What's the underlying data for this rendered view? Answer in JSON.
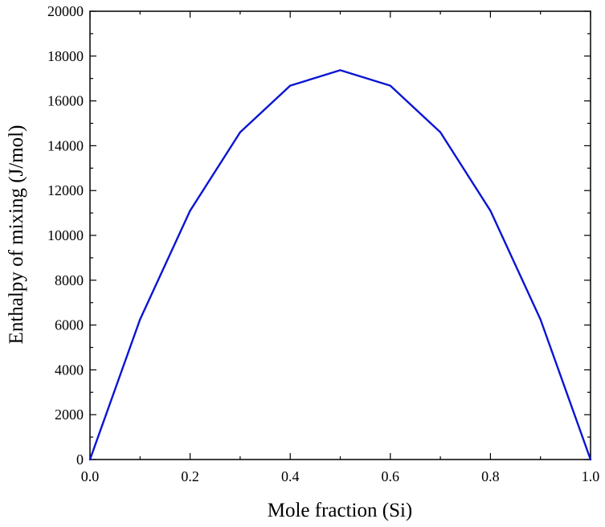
{
  "chart_data": {
    "type": "line",
    "title": "",
    "xlabel": "Mole fraction (Si)",
    "ylabel": "Enthalpy of mixing (J/mol)",
    "xlim": [
      0.0,
      1.0
    ],
    "ylim": [
      0,
      20000
    ],
    "x_ticks": [
      0.0,
      0.2,
      0.4,
      0.6,
      0.8,
      1.0
    ],
    "x_tick_labels": [
      "0.0",
      "0.2",
      "0.4",
      "0.6",
      "0.8",
      "1.0"
    ],
    "y_ticks": [
      0,
      2000,
      4000,
      6000,
      8000,
      10000,
      12000,
      14000,
      16000,
      18000,
      20000
    ],
    "y_tick_labels": [
      "0",
      "2000",
      "4000",
      "6000",
      "8000",
      "10000",
      "12000",
      "14000",
      "16000",
      "18000",
      "20000"
    ],
    "grid": false,
    "legend": "none",
    "series": [
      {
        "color": "#0a14d2",
        "x": [
          0.0,
          0.1,
          0.2,
          0.3,
          0.4,
          0.5,
          0.6,
          0.7,
          0.8,
          0.9,
          1.0
        ],
        "y": [
          0,
          6250,
          11100,
          14600,
          16680,
          17370,
          16680,
          14600,
          11100,
          6250,
          0
        ]
      }
    ]
  }
}
